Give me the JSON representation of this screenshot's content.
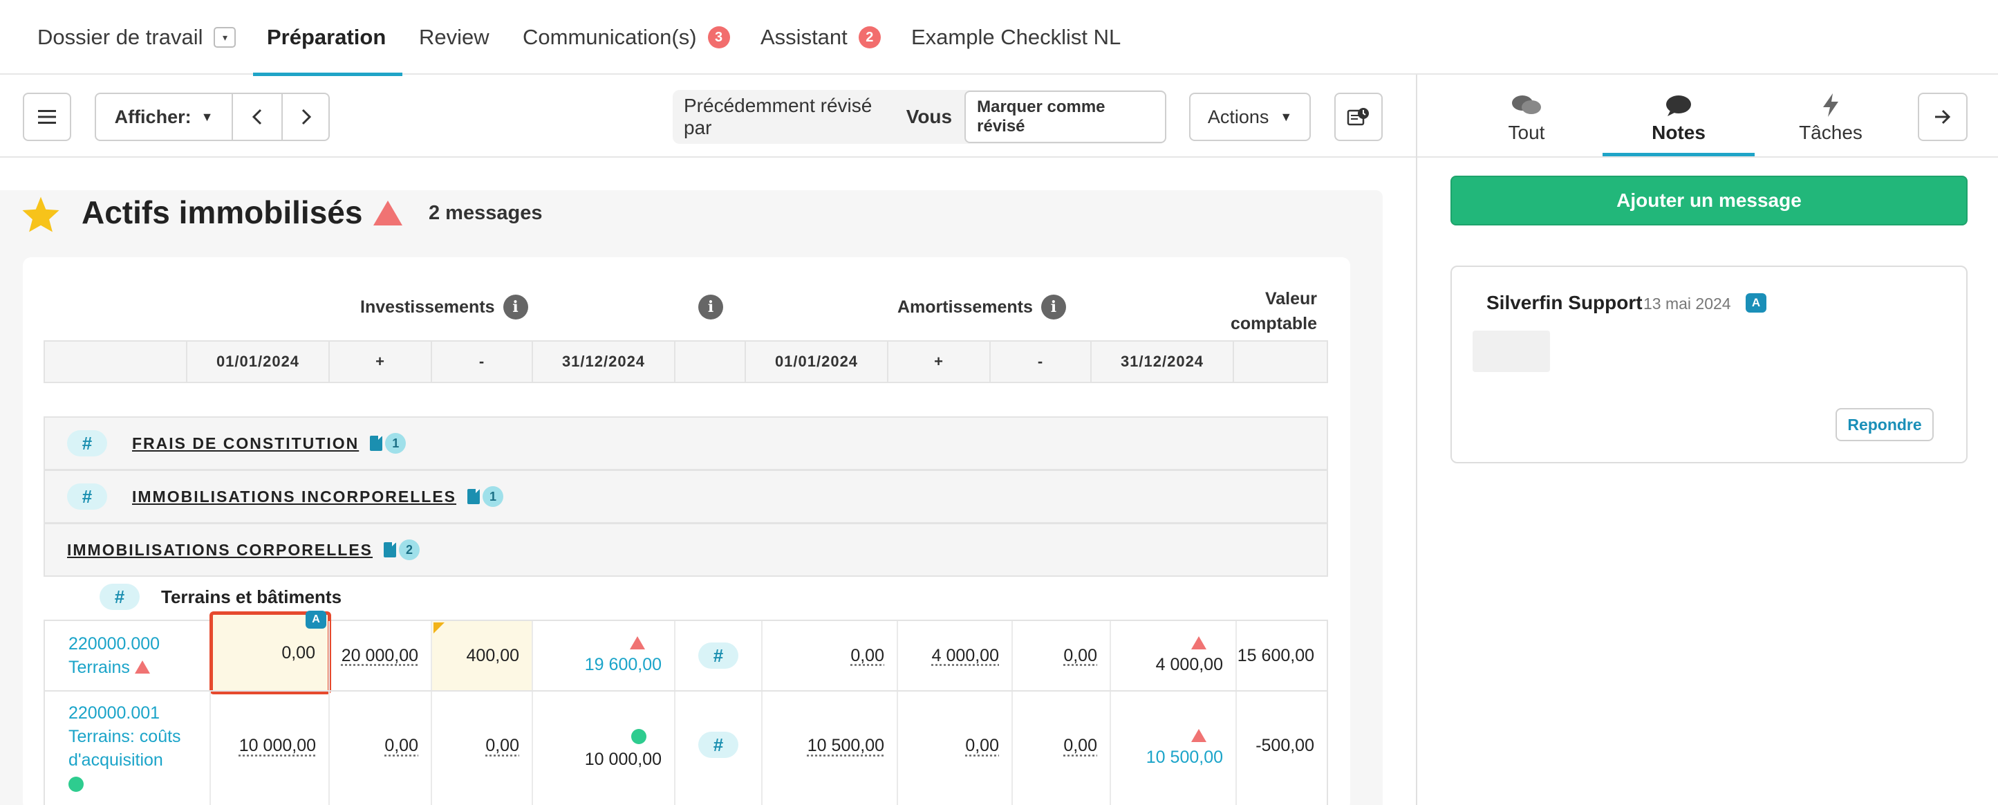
{
  "top_tabs": [
    {
      "label": "Dossier de travail"
    },
    {
      "label": "Préparation"
    },
    {
      "label": "Review"
    },
    {
      "label": "Communication(s)",
      "badge": "3"
    },
    {
      "label": "Assistant",
      "badge": "2"
    },
    {
      "label": "Example Checklist NL"
    }
  ],
  "toolbar": {
    "afficher_label": "Afficher:",
    "reviewed_prefix": "Précédemment révisé par",
    "reviewed_by": "Vous",
    "mark_reviewed": "Marquer comme révisé",
    "actions_label": "Actions"
  },
  "page": {
    "title": "Actifs immobilisés",
    "messages": "2 messages"
  },
  "table_headers": {
    "investissements": "Investissements",
    "amortissements": "Amortissements",
    "valeur_comptable_line1": "Valeur",
    "valeur_comptable_line2": "comptable",
    "dates": [
      "01/01/2024",
      "+",
      "-",
      "31/12/2024",
      "01/01/2024",
      "+",
      "-",
      "31/12/2024"
    ]
  },
  "groups": [
    {
      "label": "FRAIS DE CONSTITUTION",
      "count": "1"
    },
    {
      "label": "IMMOBILISATIONS INCORPORELLES",
      "count": "1"
    },
    {
      "label": "IMMOBILISATIONS CORPORELLES",
      "count": "2"
    }
  ],
  "subgroup": {
    "label": "Terrains et bâtiments"
  },
  "rows": [
    {
      "code": "220000.000",
      "name": "Terrains",
      "inv_start": "0,00",
      "inv_plus": "20 000,00",
      "inv_minus": "400,00",
      "inv_end": "19 600,00",
      "am_start": "0,00",
      "am_plus": "4 000,00",
      "am_minus": "0,00",
      "am_end": "4 000,00",
      "book_value": "15 600,00"
    },
    {
      "code": "220000.001",
      "name_line1": "Terrains: coûts",
      "name_line2": "d'acquisition",
      "inv_start": "10 000,00",
      "inv_plus": "0,00",
      "inv_minus": "0,00",
      "inv_end": "10 000,00",
      "am_start": "10 500,00",
      "am_plus": "0,00",
      "am_minus": "0,00",
      "am_end": "10 500,00",
      "book_value": "-500,00"
    }
  ],
  "sidebar": {
    "tabs": [
      {
        "label": "Tout",
        "icon": "chat-bubbles-icon"
      },
      {
        "label": "Notes",
        "icon": "chat-bubble-icon"
      },
      {
        "label": "Tâches",
        "icon": "lightning-icon"
      }
    ],
    "add_message": "Ajouter un message",
    "message": {
      "author": "Silverfin Support",
      "date": "13 mai 2024",
      "badge": "A",
      "reply_label": "Repondre"
    }
  },
  "cell_badge": "A",
  "colors": {
    "accent": "#1fa4c7",
    "green": "#22b77a",
    "red_badge": "#f26d6d",
    "highlight_border": "#e64a2e",
    "highlight_fill": "#fdf8e4"
  }
}
